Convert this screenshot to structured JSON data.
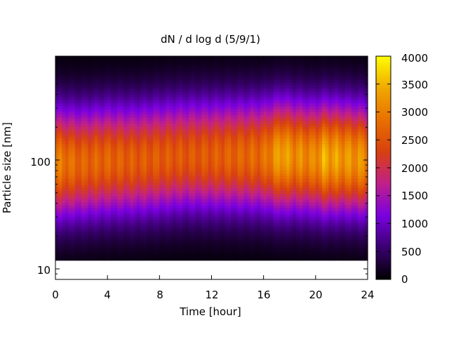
{
  "chart_data": {
    "type": "heatmap",
    "title": "dN / d log d (5/9/1)",
    "xlabel": "Time [hour]",
    "ylabel": "Particle size [nm]",
    "xlim": [
      0,
      24
    ],
    "ylim": [
      8,
      900
    ],
    "yscale": "log",
    "x_ticks": [
      "0",
      "4",
      "8",
      "12",
      "16",
      "20",
      "24"
    ],
    "y_ticks": [
      "10",
      "100"
    ],
    "colorbar": {
      "range": [
        0,
        4000
      ],
      "ticks": [
        "0",
        "500",
        "1000",
        "1500",
        "2000",
        "2500",
        "3000",
        "3500",
        "4000"
      ],
      "colormap": [
        "#000000",
        "#3a0070",
        "#7a00e0",
        "#c0208a",
        "#d84010",
        "#e87000",
        "#f0a800",
        "#ffff00"
      ]
    },
    "size_range_nm": [
      12,
      900
    ],
    "time_points_hour": [
      0,
      2,
      4,
      6,
      8,
      10,
      12,
      14,
      16,
      17.5,
      18,
      20,
      20.5,
      22,
      24
    ],
    "peak_diameter_nm": [
      95,
      95,
      100,
      100,
      105,
      110,
      110,
      110,
      110,
      110,
      110,
      105,
      105,
      105,
      100
    ],
    "peak_concentration": [
      3200,
      2900,
      2900,
      2800,
      2800,
      2750,
      2800,
      2900,
      3000,
      3700,
      3400,
      3300,
      3700,
      3500,
      3400
    ],
    "grid": false
  }
}
